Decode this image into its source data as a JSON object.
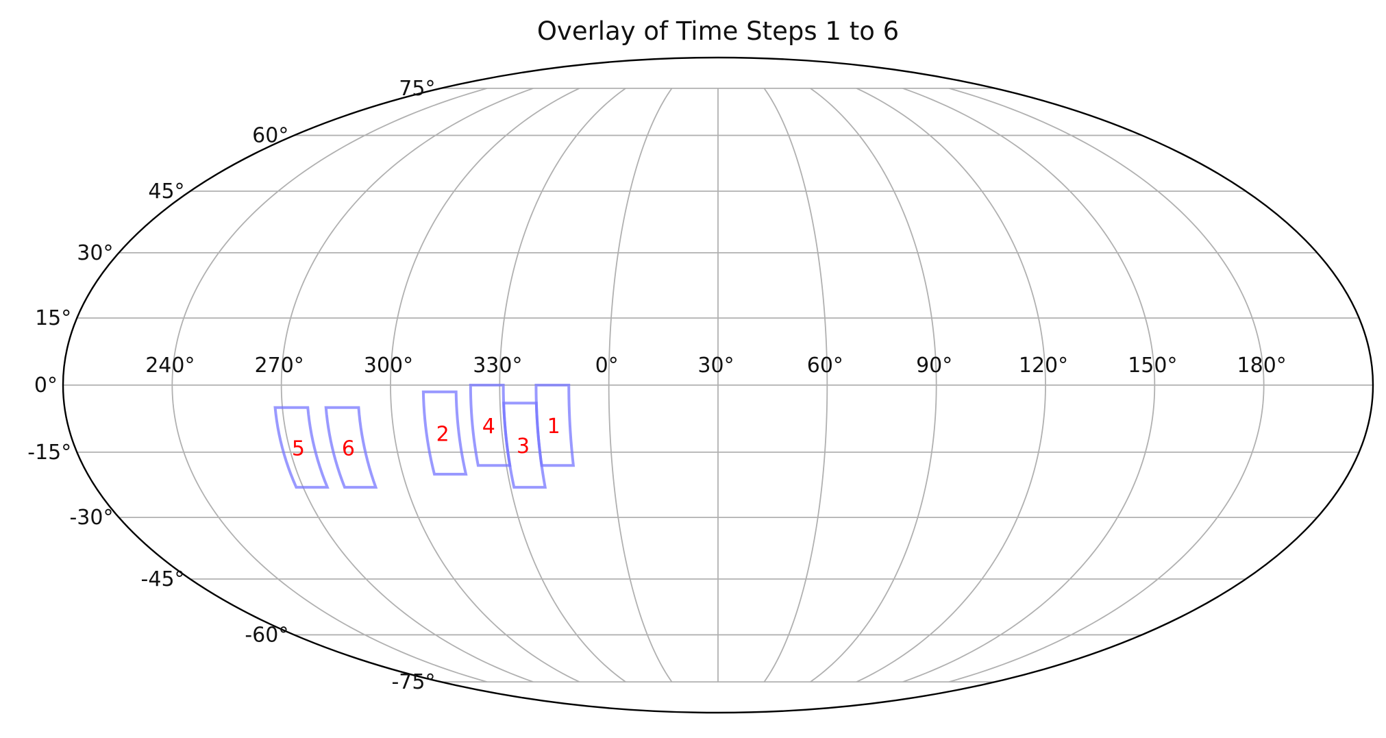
{
  "chart_data": {
    "type": "scatter",
    "projection": "mollweide",
    "title": "Overlay of Time Steps 1 to 6",
    "grid": true,
    "longitude_tick_labels": [
      "240°",
      "270°",
      "300°",
      "330°",
      "0°",
      "30°",
      "60°",
      "90°",
      "120°",
      "150°",
      "180°"
    ],
    "latitude_tick_labels": [
      "75°",
      "60°",
      "45°",
      "30°",
      "15°",
      "0°",
      "-15°",
      "-30°",
      "-45°",
      "-60°",
      "-75°"
    ],
    "regions": [
      {
        "label": "1",
        "lon_min": 340,
        "lon_max": 349,
        "lat_min": -18,
        "lat_max": 0
      },
      {
        "label": "2",
        "lon_min": 309,
        "lon_max": 318,
        "lat_min": -20,
        "lat_max": -1.5
      },
      {
        "label": "3",
        "lon_min": 331,
        "lon_max": 340,
        "lat_min": -23,
        "lat_max": -4
      },
      {
        "label": "4",
        "lon_min": 322,
        "lon_max": 331,
        "lat_min": -18,
        "lat_max": 0
      },
      {
        "label": "5",
        "lon_min": 268,
        "lon_max": 277,
        "lat_min": -23,
        "lat_max": -5
      },
      {
        "label": "6",
        "lon_min": 282,
        "lon_max": 291,
        "lat_min": -23,
        "lat_max": -5
      }
    ],
    "colors": {
      "region_outline": "#7777ff",
      "region_label": "#ff0000",
      "grid": "#b0b0b0",
      "frame": "#000000",
      "text": "#111111"
    }
  }
}
